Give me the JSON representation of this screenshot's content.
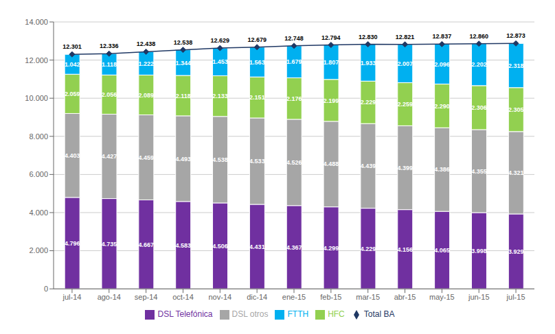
{
  "chart_data": {
    "type": "bar",
    "stacked": true,
    "data_labels": true,
    "grid": true,
    "legend": "bottom",
    "categories": [
      "jul-14",
      "ago-14",
      "sep-14",
      "oct-14",
      "nov-14",
      "dic-14",
      "ene-15",
      "feb-15",
      "mar-15",
      "abr-15",
      "may-15",
      "jun-15",
      "jul-15"
    ],
    "ylim": [
      0,
      14000
    ],
    "yticks": [
      0,
      {
        "value": 2000,
        "label": "2.000"
      },
      {
        "value": 4000,
        "label": "4.000"
      },
      {
        "value": 6000,
        "label": "6.000"
      },
      {
        "value": 8000,
        "label": "8.000"
      },
      {
        "value": 10000,
        "label": "10.000"
      },
      {
        "value": 12000,
        "label": "12.000"
      },
      {
        "value": 14000,
        "label": "14.000"
      }
    ],
    "series": [
      {
        "name": "DSL Telefónica",
        "color": "#7030A0",
        "values": [
          4796,
          4735,
          4667,
          4583,
          4506,
          4431,
          4367,
          4299,
          4229,
          4156,
          4065,
          3998,
          3929
        ],
        "value_labels": [
          "4.796",
          "4.735",
          "4.667",
          "4.583",
          "4.506",
          "4.431",
          "4.367",
          "4.299",
          "4.229",
          "4.156",
          "4.065",
          "3.998",
          "3.929"
        ]
      },
      {
        "name": "DSL otros",
        "color": "#A6A6A6",
        "values": [
          4403,
          4427,
          4459,
          4493,
          4538,
          4533,
          4526,
          4488,
          4439,
          4399,
          4386,
          4355,
          4321
        ],
        "value_labels": [
          "4.403",
          "4.427",
          "4.459",
          "4.493",
          "4.538",
          "4.533",
          "4.526",
          "4.488",
          "4.439",
          "4.399",
          "4.386",
          "4.355",
          "4.321"
        ]
      },
      {
        "name": "HFC",
        "color": "#92D050",
        "values": [
          2059,
          2056,
          2089,
          2118,
          2133,
          2151,
          2176,
          2199,
          2229,
          2259,
          2290,
          2306,
          2305
        ],
        "value_labels": [
          "2.059",
          "2.056",
          "2.089",
          "2.118",
          "2.133",
          "2.151",
          "2.176",
          "2.199",
          "2.229",
          "2.259",
          "2.290",
          "2.306",
          "2.305"
        ]
      },
      {
        "name": "FTTH",
        "color": "#00B0F0",
        "values": [
          1042,
          1118,
          1222,
          1344,
          1453,
          1563,
          1679,
          1807,
          1933,
          2007,
          2096,
          2202,
          2318
        ],
        "value_labels": [
          "1.042",
          "1.118",
          "1.222",
          "1.344",
          "1.453",
          "1.563",
          "1.679",
          "1.807",
          "1.933",
          "2.007",
          "2.096",
          "2.202",
          "2.318"
        ]
      },
      {
        "name": "Total BA",
        "type": "line",
        "marker": "diamond",
        "color": "#1F3864",
        "values": [
          12301,
          12336,
          12438,
          12538,
          12629,
          12679,
          12748,
          12794,
          12830,
          12821,
          12837,
          12860,
          12873
        ],
        "value_labels": [
          "12.301",
          "12.336",
          "12.438",
          "12.538",
          "12.629",
          "12.679",
          "12.748",
          "12.794",
          "12.830",
          "12.821",
          "12.837",
          "12.860",
          "12.873"
        ]
      }
    ]
  }
}
